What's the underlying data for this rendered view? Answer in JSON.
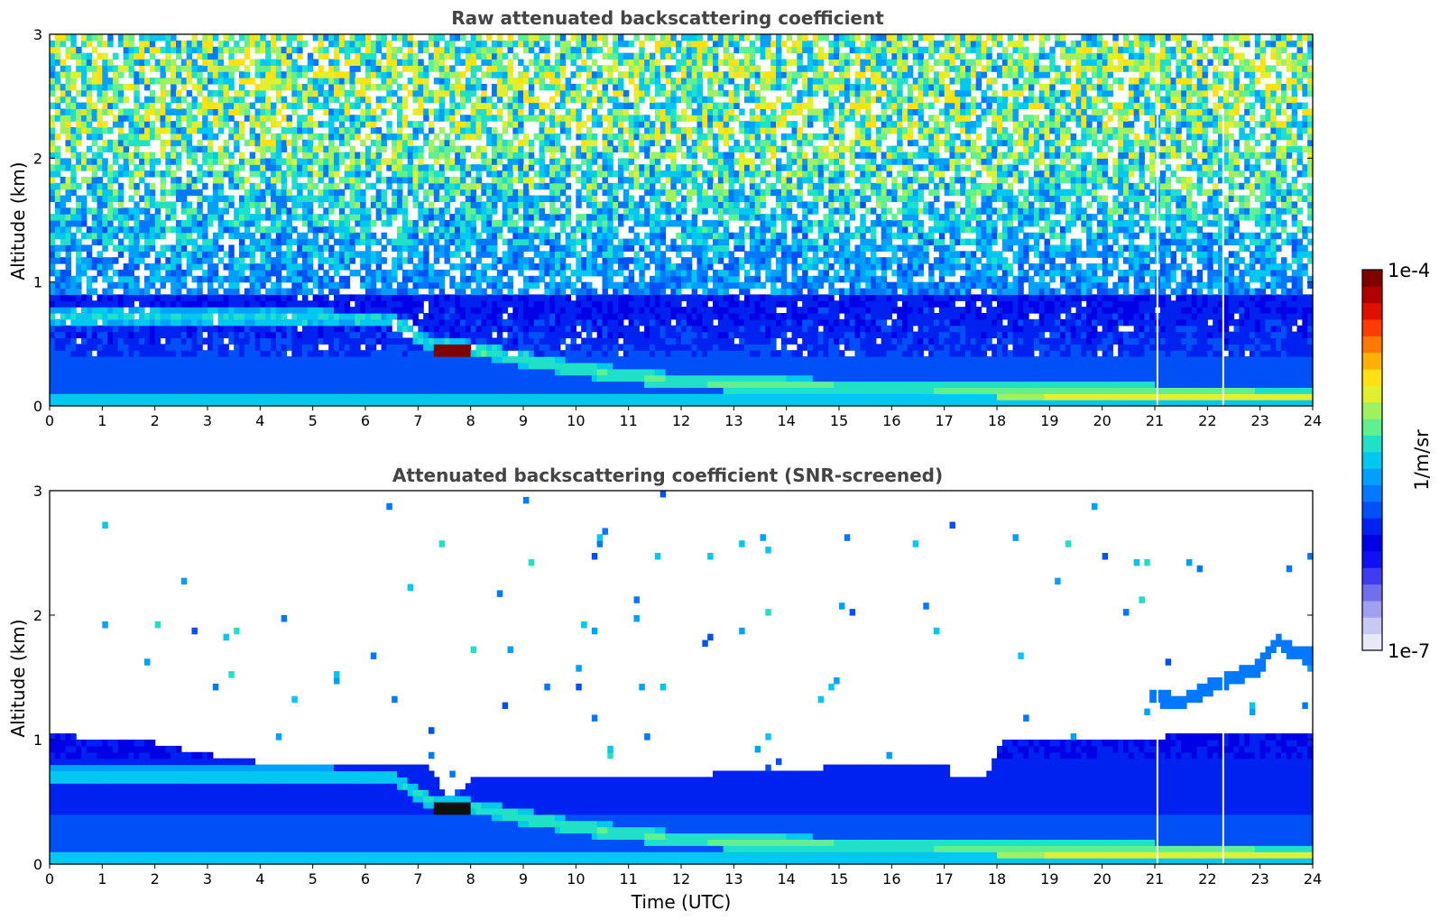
{
  "chart_data": [
    {
      "type": "heatmap",
      "title": "Raw attenuated backscattering coefficient",
      "xlabel": "",
      "ylabel": "Altitude (km)",
      "xlim": [
        0,
        24
      ],
      "ylim": [
        0,
        3
      ],
      "xticks": [
        "0",
        "1",
        "2",
        "3",
        "4",
        "5",
        "6",
        "7",
        "8",
        "9",
        "10",
        "11",
        "12",
        "13",
        "14",
        "15",
        "16",
        "17",
        "18",
        "19",
        "20",
        "21",
        "22",
        "23",
        "24"
      ],
      "yticks": [
        "0",
        "1",
        "2",
        "3"
      ],
      "color_scale": "log",
      "noise_screened": false,
      "cloud_layer_km": [
        [
          5.0,
          0.72
        ],
        [
          6.5,
          0.7
        ],
        [
          7.2,
          0.52
        ],
        [
          7.5,
          0.48
        ],
        [
          8.0,
          0.47
        ],
        [
          8.5,
          0.42
        ],
        [
          9.0,
          0.38
        ],
        [
          10.0,
          0.3
        ],
        [
          11.0,
          0.25
        ],
        [
          12.0,
          0.2
        ],
        [
          13.0,
          0.18
        ],
        [
          16.0,
          0.15
        ],
        [
          20.0,
          0.12
        ],
        [
          24.0,
          0.1
        ]
      ],
      "peak_signal": {
        "time_range_utc": [
          7.3,
          8.0
        ],
        "altitude_km": 0.47
      },
      "data_gaps_utc": [
        21.05,
        22.3
      ]
    },
    {
      "type": "heatmap",
      "title": "Attenuated backscattering coefficient (SNR-screened)",
      "xlabel": "Time (UTC)",
      "ylabel": "Altitude (km)",
      "xlim": [
        0,
        24
      ],
      "ylim": [
        0,
        3
      ],
      "xticks": [
        "0",
        "1",
        "2",
        "3",
        "4",
        "5",
        "6",
        "7",
        "8",
        "9",
        "10",
        "11",
        "12",
        "13",
        "14",
        "15",
        "16",
        "17",
        "18",
        "19",
        "20",
        "21",
        "22",
        "23",
        "24"
      ],
      "yticks": [
        "0",
        "1",
        "2",
        "3"
      ],
      "color_scale": "log",
      "noise_screened": true,
      "boundary_layer_top_km": [
        [
          0,
          1.05
        ],
        [
          1,
          1.0
        ],
        [
          2,
          0.98
        ],
        [
          3,
          0.88
        ],
        [
          4,
          0.82
        ],
        [
          5,
          0.8
        ],
        [
          6,
          0.78
        ],
        [
          6.8,
          0.8
        ],
        [
          7.2,
          0.78
        ],
        [
          7.5,
          0.58
        ],
        [
          7.8,
          0.55
        ],
        [
          8.1,
          0.7
        ],
        [
          9,
          0.68
        ],
        [
          10,
          0.7
        ],
        [
          11,
          0.72
        ],
        [
          12,
          0.68
        ],
        [
          13,
          0.75
        ],
        [
          14,
          0.76
        ],
        [
          15,
          0.78
        ],
        [
          16,
          0.8
        ],
        [
          17,
          0.82
        ],
        [
          17.2,
          0.68
        ],
        [
          17.8,
          0.7
        ],
        [
          18.1,
          1.0
        ],
        [
          19,
          1.02
        ],
        [
          20,
          1.0
        ],
        [
          21,
          1.02
        ],
        [
          22,
          1.05
        ],
        [
          23,
          1.05
        ],
        [
          24,
          1.05
        ]
      ],
      "cloud_layer_km": [
        [
          5.0,
          0.72
        ],
        [
          6.5,
          0.7
        ],
        [
          7.2,
          0.52
        ],
        [
          7.5,
          0.48
        ],
        [
          8.0,
          0.47
        ],
        [
          8.5,
          0.42
        ],
        [
          9.0,
          0.38
        ],
        [
          10.0,
          0.3
        ],
        [
          11.0,
          0.25
        ],
        [
          12.0,
          0.2
        ],
        [
          13.0,
          0.18
        ],
        [
          16.0,
          0.15
        ],
        [
          20.0,
          0.12
        ],
        [
          24.0,
          0.1
        ]
      ],
      "elevated_layer_km": [
        [
          21.0,
          1.35
        ],
        [
          21.5,
          1.3
        ],
        [
          22.0,
          1.42
        ],
        [
          22.5,
          1.5
        ],
        [
          23.0,
          1.58
        ],
        [
          23.3,
          1.8
        ],
        [
          23.6,
          1.72
        ],
        [
          23.8,
          1.68
        ]
      ],
      "peak_signal": {
        "time_range_utc": [
          7.3,
          8.0
        ],
        "altitude_km": 0.47
      },
      "data_gaps_utc": [
        21.05,
        22.3
      ]
    }
  ],
  "colorbar": {
    "label": "1/m/sr",
    "max_label": "1e-4",
    "min_label": "1e-7",
    "colors": [
      "#e8e8f8",
      "#c8c8f4",
      "#a0a0f0",
      "#7070ec",
      "#3c3cf0",
      "#1010f4",
      "#0000e6",
      "#0022f0",
      "#0050f8",
      "#0078ff",
      "#00a0ff",
      "#00c8f0",
      "#20e0c8",
      "#60f090",
      "#a0f060",
      "#e0f030",
      "#ffe010",
      "#ffb000",
      "#ff7800",
      "#ff3c00",
      "#e01000",
      "#b00000",
      "#800000"
    ]
  },
  "colors": {
    "title": "#444444",
    "background": "#ffffff"
  }
}
